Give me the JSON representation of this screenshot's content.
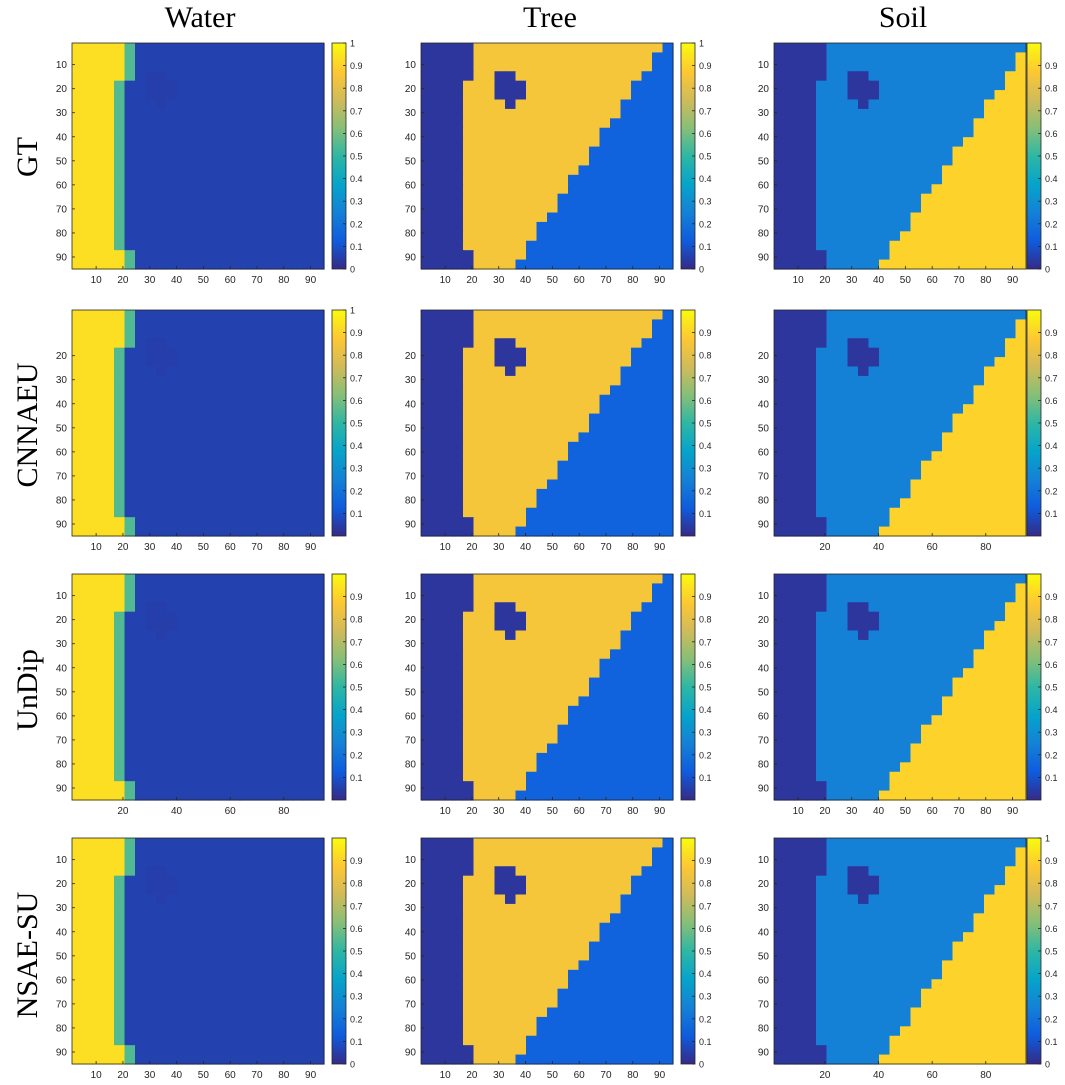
{
  "figure": {
    "column_titles": [
      "Water",
      "Tree",
      "Soil"
    ],
    "row_titles": [
      "GT",
      "CNNAEU",
      "UnDip",
      "NSAE-SU"
    ]
  },
  "colormap": {
    "name": "parula",
    "stops": [
      "#352a87",
      "#0f5cdd",
      "#1481d6",
      "#06a4ca",
      "#2eb7a4",
      "#87bf77",
      "#d1bb59",
      "#fec832",
      "#f9fb0e"
    ]
  },
  "chart_data": [
    {
      "type": "heatmap",
      "row": "GT",
      "column": "Water",
      "x_ticks": [
        10,
        20,
        30,
        40,
        50,
        60,
        70,
        80,
        90
      ],
      "y_ticks": [
        10,
        20,
        30,
        40,
        50,
        60,
        70,
        80,
        90
      ],
      "xlim": [
        1,
        95
      ],
      "ylim": [
        1,
        95
      ],
      "colorbar_range": [
        0,
        1
      ],
      "colorbar_ticks": [
        "0",
        "0.1",
        "0.2",
        "0.3",
        "0.4",
        "0.5",
        "0.6",
        "0.7",
        "0.8",
        "0.9",
        "1"
      ]
    },
    {
      "type": "heatmap",
      "row": "GT",
      "column": "Tree",
      "x_ticks": [
        10,
        20,
        30,
        40,
        50,
        60,
        70,
        80,
        90
      ],
      "y_ticks": [
        10,
        20,
        30,
        40,
        50,
        60,
        70,
        80,
        90
      ],
      "xlim": [
        1,
        95
      ],
      "ylim": [
        1,
        95
      ],
      "colorbar_range": [
        0,
        1
      ],
      "colorbar_ticks": [
        "0",
        "0.1",
        "0.2",
        "0.3",
        "0.4",
        "0.5",
        "0.6",
        "0.7",
        "0.8",
        "0.9",
        "1"
      ]
    },
    {
      "type": "heatmap",
      "row": "GT",
      "column": "Soil",
      "x_ticks": [
        10,
        20,
        30,
        40,
        50,
        60,
        70,
        80,
        90
      ],
      "y_ticks": [
        10,
        20,
        30,
        40,
        50,
        60,
        70,
        80,
        90
      ],
      "xlim": [
        1,
        95
      ],
      "ylim": [
        1,
        95
      ],
      "colorbar_range": [
        0,
        1
      ],
      "colorbar_ticks": [
        "0",
        "0.1",
        "0.2",
        "0.3",
        "0.4",
        "0.5",
        "0.6",
        "0.7",
        "0.8",
        "0.9"
      ]
    },
    {
      "type": "heatmap",
      "row": "CNNAEU",
      "column": "Water",
      "x_ticks": [
        10,
        20,
        30,
        40,
        50,
        60,
        70,
        80,
        90
      ],
      "y_ticks": [
        20,
        30,
        40,
        50,
        60,
        70,
        80,
        90
      ],
      "xlim": [
        1,
        95
      ],
      "ylim": [
        1,
        95
      ],
      "colorbar_range": [
        0,
        1
      ],
      "colorbar_ticks": [
        "0.1",
        "0.2",
        "0.3",
        "0.4",
        "0.5",
        "0.6",
        "0.7",
        "0.8",
        "0.9",
        "1"
      ]
    },
    {
      "type": "heatmap",
      "row": "CNNAEU",
      "column": "Tree",
      "x_ticks": [
        10,
        20,
        30,
        40,
        50,
        60,
        70,
        80,
        90
      ],
      "y_ticks": [
        20,
        30,
        40,
        50,
        60,
        70,
        80,
        90
      ],
      "xlim": [
        1,
        95
      ],
      "ylim": [
        1,
        95
      ],
      "colorbar_range": [
        0,
        1
      ],
      "colorbar_ticks": [
        "0.1",
        "0.2",
        "0.3",
        "0.4",
        "0.5",
        "0.6",
        "0.7",
        "0.8",
        "0.9"
      ]
    },
    {
      "type": "heatmap",
      "row": "CNNAEU",
      "column": "Soil",
      "x_ticks": [
        20,
        40,
        60,
        80
      ],
      "y_ticks": [
        20,
        30,
        40,
        50,
        60,
        70,
        80,
        90
      ],
      "xlim": [
        1,
        95
      ],
      "ylim": [
        1,
        95
      ],
      "colorbar_range": [
        0,
        1
      ],
      "colorbar_ticks": [
        "0.1",
        "0.2",
        "0.3",
        "0.4",
        "0.5",
        "0.6",
        "0.7",
        "0.8",
        "0.9"
      ]
    },
    {
      "type": "heatmap",
      "row": "UnDip",
      "column": "Water",
      "x_ticks": [
        20,
        40,
        60,
        80
      ],
      "y_ticks": [
        10,
        20,
        30,
        40,
        50,
        60,
        70,
        80,
        90
      ],
      "xlim": [
        1,
        95
      ],
      "ylim": [
        1,
        95
      ],
      "colorbar_range": [
        0,
        1
      ],
      "colorbar_ticks": [
        "0.1",
        "0.2",
        "0.3",
        "0.4",
        "0.5",
        "0.6",
        "0.7",
        "0.8",
        "0.9"
      ]
    },
    {
      "type": "heatmap",
      "row": "UnDip",
      "column": "Tree",
      "x_ticks": [
        10,
        20,
        30,
        40,
        50,
        60,
        70,
        80,
        90
      ],
      "y_ticks": [
        10,
        20,
        30,
        40,
        50,
        60,
        70,
        80,
        90
      ],
      "xlim": [
        1,
        95
      ],
      "ylim": [
        1,
        95
      ],
      "colorbar_range": [
        0,
        1
      ],
      "colorbar_ticks": [
        "0.1",
        "0.2",
        "0.3",
        "0.4",
        "0.5",
        "0.6",
        "0.7",
        "0.8",
        "0.9"
      ]
    },
    {
      "type": "heatmap",
      "row": "UnDip",
      "column": "Soil",
      "x_ticks": [
        10,
        20,
        30,
        40,
        50,
        60,
        70,
        80,
        90
      ],
      "y_ticks": [
        10,
        20,
        30,
        40,
        50,
        60,
        70,
        80,
        90
      ],
      "xlim": [
        1,
        95
      ],
      "ylim": [
        1,
        95
      ],
      "colorbar_range": [
        0,
        1
      ],
      "colorbar_ticks": [
        "0.1",
        "0.2",
        "0.3",
        "0.4",
        "0.5",
        "0.6",
        "0.7",
        "0.8",
        "0.9"
      ]
    },
    {
      "type": "heatmap",
      "row": "NSAE-SU",
      "column": "Water",
      "x_ticks": [
        10,
        20,
        30,
        40,
        50,
        60,
        70,
        80,
        90
      ],
      "y_ticks": [
        10,
        20,
        30,
        40,
        50,
        60,
        70,
        80,
        90
      ],
      "xlim": [
        1,
        95
      ],
      "ylim": [
        1,
        95
      ],
      "colorbar_range": [
        0,
        1
      ],
      "colorbar_ticks": [
        "0",
        "0.1",
        "0.2",
        "0.3",
        "0.4",
        "0.5",
        "0.6",
        "0.7",
        "0.8",
        "0.9"
      ]
    },
    {
      "type": "heatmap",
      "row": "NSAE-SU",
      "column": "Tree",
      "x_ticks": [
        10,
        20,
        30,
        40,
        50,
        60,
        70,
        80,
        90
      ],
      "y_ticks": [
        10,
        20,
        30,
        40,
        50,
        60,
        70,
        80,
        90
      ],
      "xlim": [
        1,
        95
      ],
      "ylim": [
        1,
        95
      ],
      "colorbar_range": [
        0,
        1
      ],
      "colorbar_ticks": [
        "0",
        "0.1",
        "0.2",
        "0.3",
        "0.4",
        "0.5",
        "0.6",
        "0.7",
        "0.8",
        "0.9"
      ]
    },
    {
      "type": "heatmap",
      "row": "NSAE-SU",
      "column": "Soil",
      "x_ticks": [
        20,
        40,
        60,
        80
      ],
      "y_ticks": [
        10,
        20,
        30,
        40,
        50,
        60,
        70,
        80,
        90
      ],
      "xlim": [
        1,
        95
      ],
      "ylim": [
        1,
        95
      ],
      "colorbar_range": [
        0,
        1
      ],
      "colorbar_ticks": [
        "0",
        "0.1",
        "0.2",
        "0.3",
        "0.4",
        "0.5",
        "0.6",
        "0.7",
        "0.8",
        "0.9",
        "1"
      ]
    }
  ]
}
